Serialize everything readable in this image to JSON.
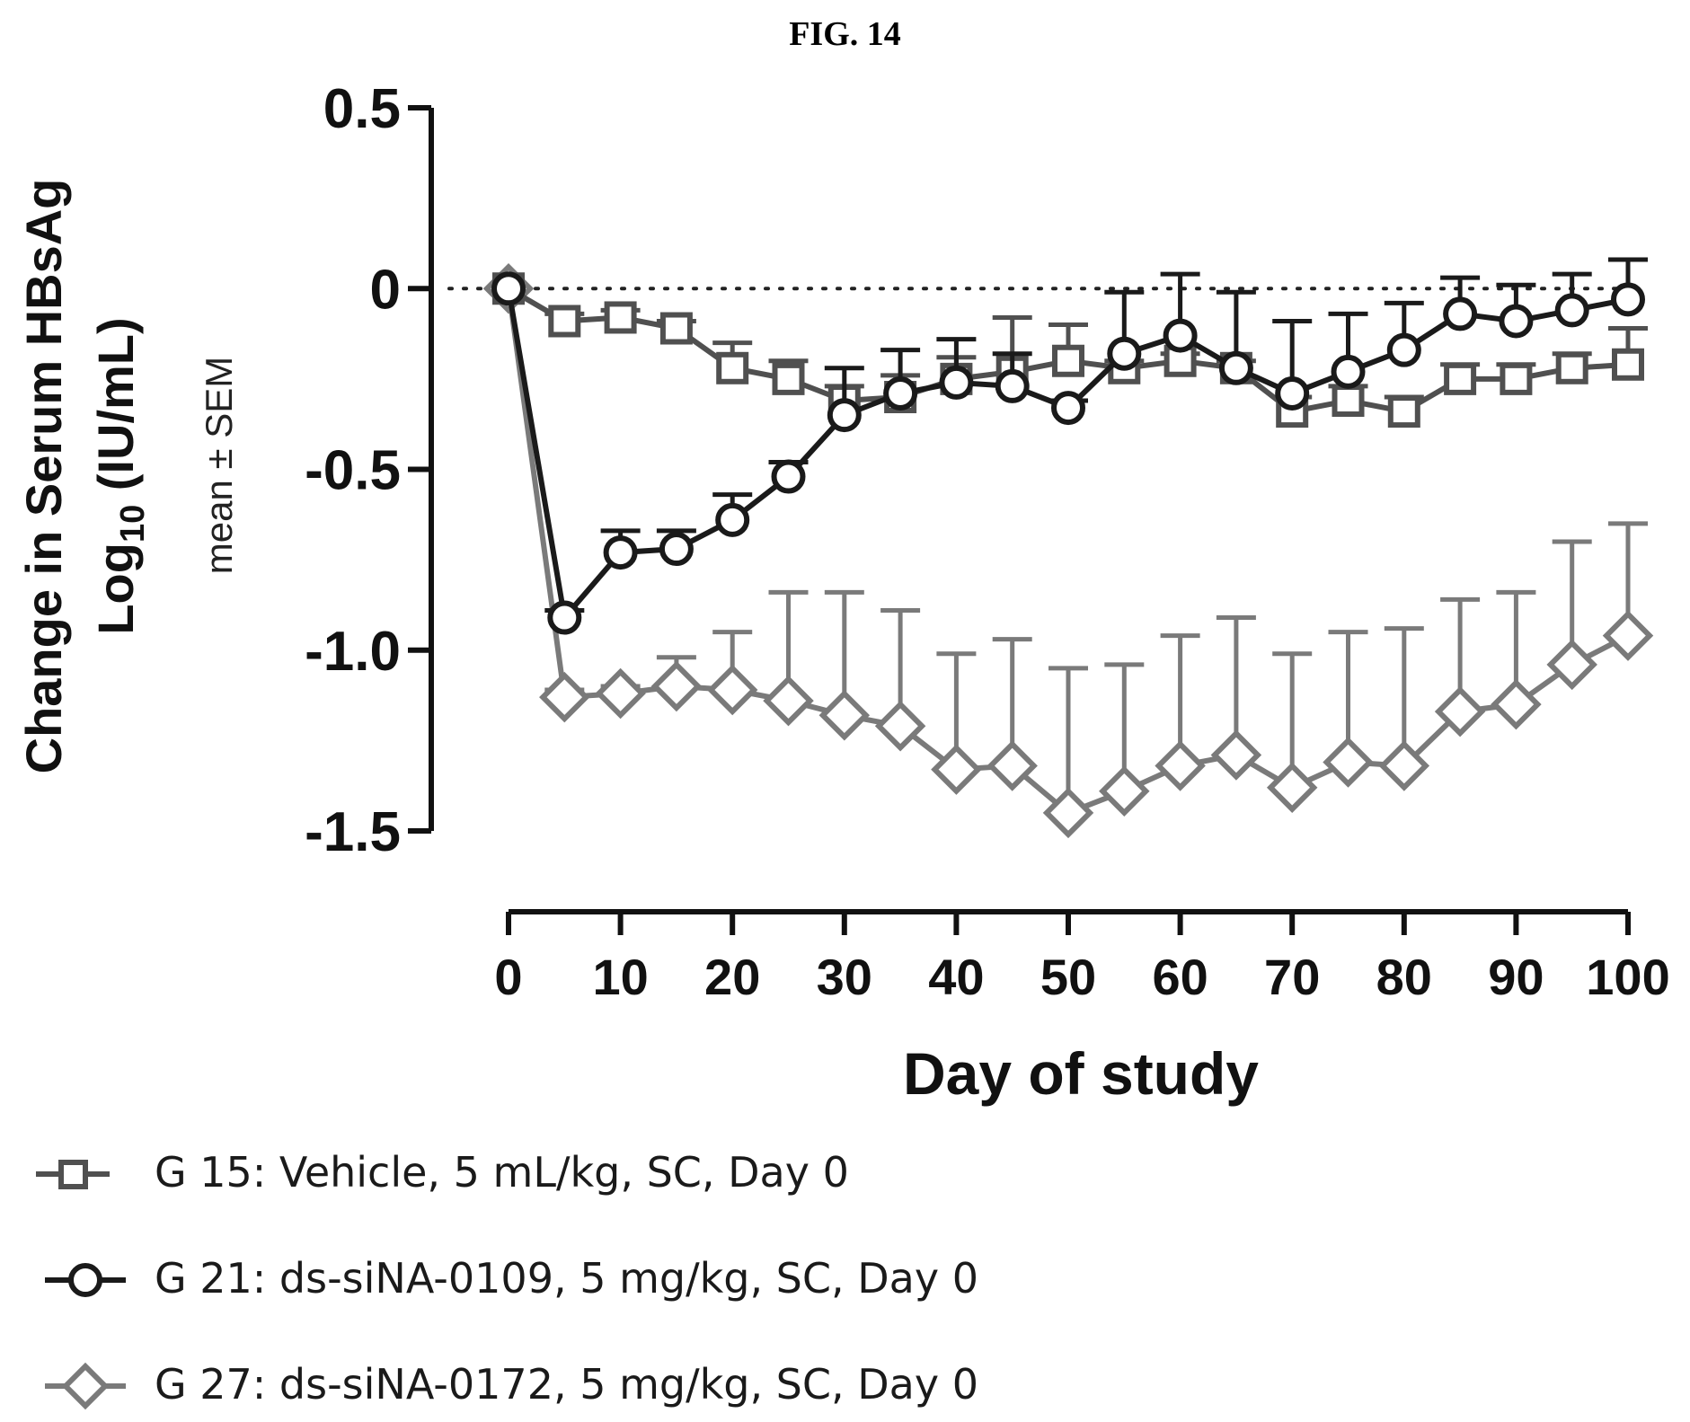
{
  "figure_label": "FIG. 14",
  "colors": {
    "vehicle": "#505050",
    "sina0109": "#1a1a1a",
    "sina0172": "#7a7a7a",
    "axis": "#111111"
  },
  "chart_data": {
    "type": "line",
    "xlabel": "Day of study",
    "ylabel_line1": "Change in Serum HBsAg",
    "ylabel_line2_base": "Log",
    "ylabel_line2_sub": "10",
    "ylabel_line2_rest": " (IU/mL)",
    "ylabel_note": "mean ± SEM",
    "xlim": [
      0,
      100
    ],
    "ylim": [
      -1.5,
      0.5
    ],
    "xticks": [
      0,
      10,
      20,
      30,
      40,
      50,
      60,
      70,
      80,
      90,
      100
    ],
    "yticks": [
      0.5,
      0,
      -0.5,
      -1.0,
      -1.5
    ],
    "ytick_labels": [
      "0.5",
      "0",
      "-0.5",
      "-1.0",
      "-1.5"
    ],
    "reference_line": 0,
    "legend_position": "bottom",
    "x": [
      0,
      5,
      10,
      15,
      20,
      25,
      30,
      35,
      40,
      45,
      50,
      55,
      60,
      65,
      70,
      75,
      80,
      85,
      90,
      95,
      100
    ],
    "series": [
      {
        "name": "G 15: Vehicle, 5 mL/kg, SC, Day 0",
        "marker": "square",
        "values": [
          0,
          -0.09,
          -0.08,
          -0.11,
          -0.22,
          -0.25,
          -0.31,
          -0.3,
          -0.25,
          -0.23,
          -0.2,
          -0.22,
          -0.2,
          -0.22,
          -0.34,
          -0.31,
          -0.34,
          -0.25,
          -0.25,
          -0.22,
          -0.21
        ],
        "sem": [
          0,
          0.02,
          0.02,
          0.02,
          0.07,
          0.05,
          0.04,
          0.06,
          0.06,
          0.15,
          0.1,
          0.02,
          0.02,
          0.02,
          0.04,
          0.04,
          0.04,
          0.04,
          0.04,
          0.04,
          0.1
        ]
      },
      {
        "name": "G 21: ds-siNA-0109, 5 mg/kg, SC, Day 0",
        "marker": "circle",
        "values": [
          0,
          -0.91,
          -0.73,
          -0.72,
          -0.64,
          -0.52,
          -0.35,
          -0.29,
          -0.26,
          -0.27,
          -0.33,
          -0.18,
          -0.13,
          -0.22,
          -0.29,
          -0.23,
          -0.17,
          -0.07,
          -0.09,
          -0.06,
          -0.03
        ],
        "sem": [
          0,
          0.02,
          0.06,
          0.05,
          0.07,
          0.04,
          0.13,
          0.12,
          0.12,
          0.09,
          0.02,
          0.17,
          0.17,
          0.21,
          0.2,
          0.16,
          0.13,
          0.1,
          0.1,
          0.1,
          0.11
        ]
      },
      {
        "name": "G 27: ds-siNA-0172, 5 mg/kg, SC, Day 0",
        "marker": "diamond",
        "values": [
          0,
          -1.13,
          -1.12,
          -1.1,
          -1.11,
          -1.14,
          -1.18,
          -1.21,
          -1.33,
          -1.32,
          -1.45,
          -1.39,
          -1.32,
          -1.29,
          -1.38,
          -1.31,
          -1.32,
          -1.17,
          -1.15,
          -1.04,
          -0.96
        ],
        "sem": [
          0,
          0.02,
          0.02,
          0.08,
          0.16,
          0.3,
          0.34,
          0.32,
          0.32,
          0.35,
          0.4,
          0.35,
          0.36,
          0.38,
          0.37,
          0.36,
          0.38,
          0.31,
          0.31,
          0.34,
          0.31
        ]
      }
    ]
  }
}
